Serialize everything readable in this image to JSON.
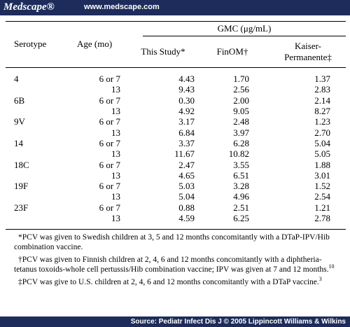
{
  "header": {
    "brand": "Medscape®",
    "url": "www.medscape.com"
  },
  "table": {
    "columns": {
      "serotype": "Serotype",
      "age": "Age (mo)",
      "group": "GMC (μg/mL)",
      "study": "This Study*",
      "finom": "FinOM†",
      "kaiser": "Kaiser-Permanente‡"
    },
    "groups": [
      {
        "serotype": "4",
        "rows": [
          {
            "age": "6 or 7",
            "values": [
              "4.43",
              "1.70",
              "1.37"
            ]
          },
          {
            "age": "13",
            "values": [
              "9.43",
              "2.56",
              "2.83"
            ]
          }
        ]
      },
      {
        "serotype": "6B",
        "rows": [
          {
            "age": "6 or 7",
            "values": [
              "0.30",
              "2.00",
              "2.14"
            ]
          },
          {
            "age": "13",
            "values": [
              "4.92",
              "9.05",
              "8.27"
            ]
          }
        ]
      },
      {
        "serotype": "9V",
        "rows": [
          {
            "age": "6 or 7",
            "values": [
              "3.17",
              "2.48",
              "1.23"
            ]
          },
          {
            "age": "13",
            "values": [
              "6.84",
              "3.97",
              "2.70"
            ]
          }
        ]
      },
      {
        "serotype": "14",
        "rows": [
          {
            "age": "6 or 7",
            "values": [
              "3.37",
              "6.28",
              "5.04"
            ]
          },
          {
            "age": "13",
            "values": [
              "11.67",
              "10.82",
              "5.05"
            ]
          }
        ]
      },
      {
        "serotype": "18C",
        "rows": [
          {
            "age": "6 or 7",
            "values": [
              "2.47",
              "3.55",
              "1.88"
            ]
          },
          {
            "age": "13",
            "values": [
              "4.65",
              "6.51",
              "3.01"
            ]
          }
        ]
      },
      {
        "serotype": "19F",
        "rows": [
          {
            "age": "6 or 7",
            "values": [
              "5.03",
              "3.28",
              "1.52"
            ]
          },
          {
            "age": "13",
            "values": [
              "5.04",
              "4.96",
              "2.54"
            ]
          }
        ]
      },
      {
        "serotype": "23F",
        "rows": [
          {
            "age": "6 or 7",
            "values": [
              "0.88",
              "2.51",
              "1.21"
            ]
          },
          {
            "age": "13",
            "values": [
              "4.59",
              "6.25",
              "2.78"
            ]
          }
        ]
      }
    ]
  },
  "footnotes": [
    {
      "text": "*PCV was given to Swedish children at 3, 5 and 12 months concomitantly with a DTaP-IPV/Hib combination vaccine."
    },
    {
      "text": "†PCV was given to Finnish children at 2, 4, 6 and 12 months concomitantly with a diphtheria-tetanus toxoids-whole cell pertussis/Hib combination vaccine; IPV was given at 7 and 12 months.",
      "ref": "10"
    },
    {
      "text": "‡PCV was give to U.S. children at 2, 4, 6 and 12 months concomitantly with a DTaP vaccine.",
      "ref": "3"
    }
  ],
  "footer": {
    "source": "Source: Pediatr Infect Dis J © 2005 Lippincott Williams & Wilkins"
  }
}
